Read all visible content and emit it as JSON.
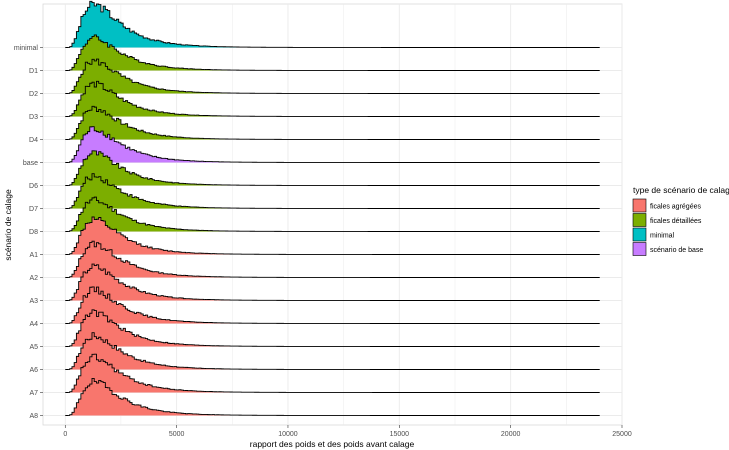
{
  "chart_data": {
    "type": "area",
    "subtype": "ridgeline-histogram",
    "xlabel": "rapport des poids et des poids avant calage",
    "ylabel": "scénario de calage",
    "xlim": [
      -1000,
      25000
    ],
    "x_ticks": [
      0,
      5000,
      10000,
      15000,
      20000,
      25000
    ],
    "x_tick_labels": [
      "0",
      "5000",
      "10000",
      "15000",
      "20000",
      "25000"
    ],
    "grid": true,
    "legend": {
      "title": "type de scénario de calage",
      "position": "right",
      "entries": [
        {
          "label": "ficales agrégées",
          "color": "#F8766D"
        },
        {
          "label": "ficales détaillées",
          "color": "#7CAE00"
        },
        {
          "label": "minimal",
          "color": "#00BFC4"
        },
        {
          "label": "scénario de base",
          "color": "#C77CFF"
        }
      ]
    },
    "distribution_shape": {
      "x_start": 0,
      "x_end": 24000,
      "mode": 1300,
      "relative_tail_at_5000": 0.06
    },
    "series": [
      {
        "name": "minimal",
        "type_label": "minimal",
        "color": "#00BFC4",
        "peak_height": 1.85
      },
      {
        "name": "D1",
        "type_label": "ficales détaillées",
        "color": "#7CAE00",
        "peak_height": 1.4
      },
      {
        "name": "D2",
        "type_label": "ficales détaillées",
        "color": "#7CAE00",
        "peak_height": 1.4
      },
      {
        "name": "D3",
        "type_label": "ficales détaillées",
        "color": "#7CAE00",
        "peak_height": 1.4
      },
      {
        "name": "D4",
        "type_label": "ficales détaillées",
        "color": "#7CAE00",
        "peak_height": 1.35
      },
      {
        "name": "base",
        "type_label": "scénario de base",
        "color": "#C77CFF",
        "peak_height": 1.45
      },
      {
        "name": "D6",
        "type_label": "ficales détaillées",
        "color": "#7CAE00",
        "peak_height": 1.4
      },
      {
        "name": "D7",
        "type_label": "ficales détaillées",
        "color": "#7CAE00",
        "peak_height": 1.4
      },
      {
        "name": "D8",
        "type_label": "ficales détaillées",
        "color": "#7CAE00",
        "peak_height": 1.35
      },
      {
        "name": "A1",
        "type_label": "ficales agrégées",
        "color": "#F8766D",
        "peak_height": 1.5
      },
      {
        "name": "A2",
        "type_label": "ficales agrégées",
        "color": "#F8766D",
        "peak_height": 1.45
      },
      {
        "name": "A3",
        "type_label": "ficales agrégées",
        "color": "#F8766D",
        "peak_height": 1.45
      },
      {
        "name": "A4",
        "type_label": "ficales agrégées",
        "color": "#F8766D",
        "peak_height": 1.45
      },
      {
        "name": "A5",
        "type_label": "ficales agrégées",
        "color": "#F8766D",
        "peak_height": 1.45
      },
      {
        "name": "A6",
        "type_label": "ficales agrégées",
        "color": "#F8766D",
        "peak_height": 1.45
      },
      {
        "name": "A7",
        "type_label": "ficales agrégées",
        "color": "#F8766D",
        "peak_height": 1.5
      },
      {
        "name": "A8",
        "type_label": "ficales agrégées",
        "color": "#F8766D",
        "peak_height": 1.45
      }
    ]
  }
}
